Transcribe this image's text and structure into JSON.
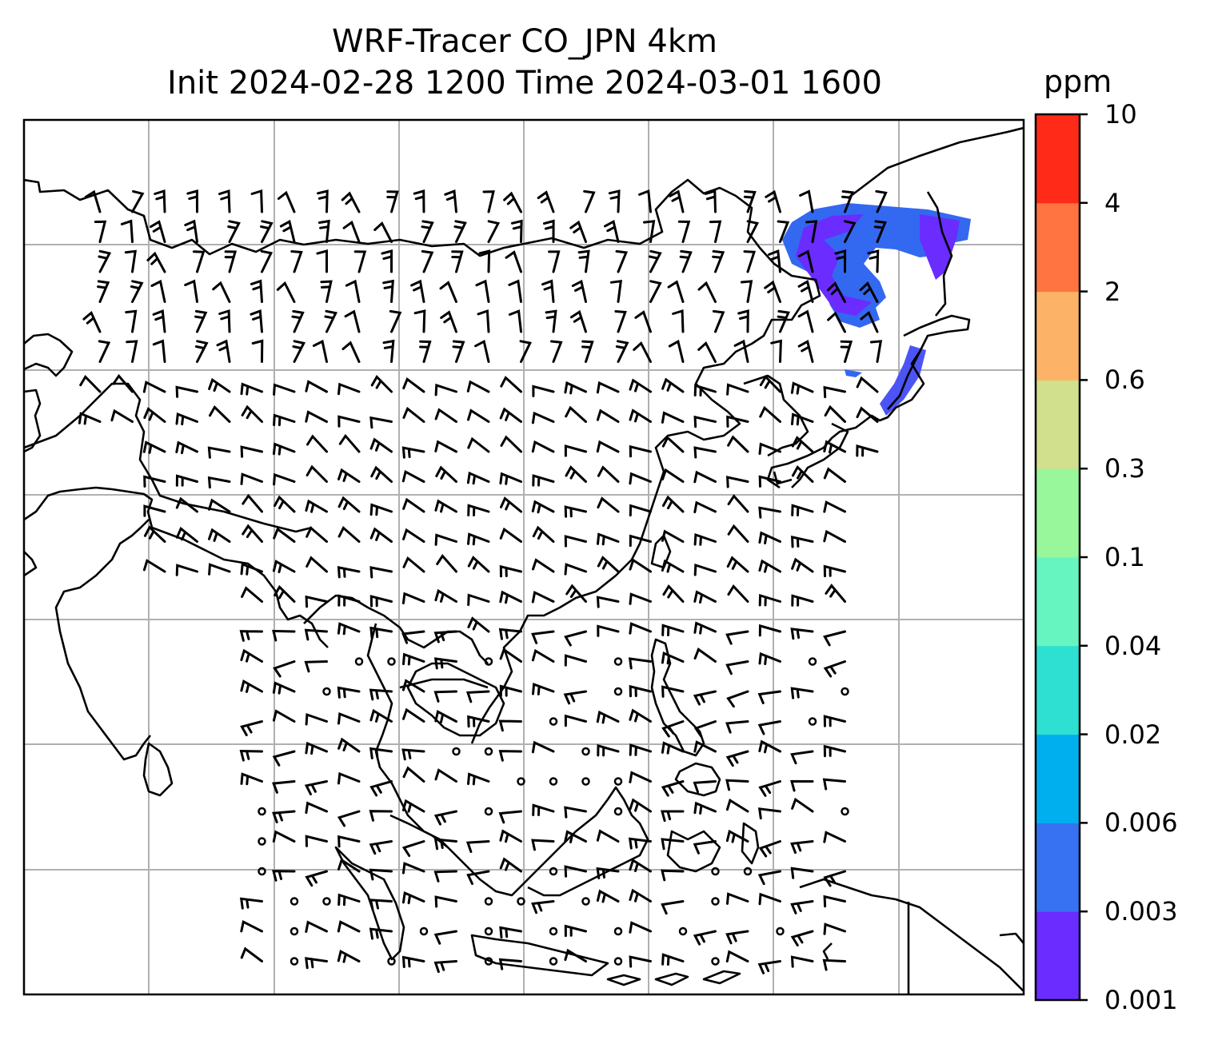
{
  "title": {
    "line1": "WRF-Tracer CO_JPN 4km",
    "line2": "Init 2024-02-28 1200 Time 2024-03-01 1600"
  },
  "colorbar": {
    "unit": "ppm",
    "levels": [
      "0.001",
      "0.003",
      "0.006",
      "0.02",
      "0.04",
      "0.1",
      "0.3",
      "0.6",
      "2",
      "4",
      "10"
    ],
    "colors": [
      "#6a2cff",
      "#3672f2",
      "#00b0ee",
      "#2ee0d2",
      "#66f5c0",
      "#98f79a",
      "#d0e08c",
      "#fdb367",
      "#ff7440",
      "#ff2a18"
    ]
  },
  "map": {
    "plume_color": "#3366ff",
    "plume_core_color": "#6a2cff",
    "gridline_color": "#b0b0b0",
    "coastline_color": "#000000"
  }
}
